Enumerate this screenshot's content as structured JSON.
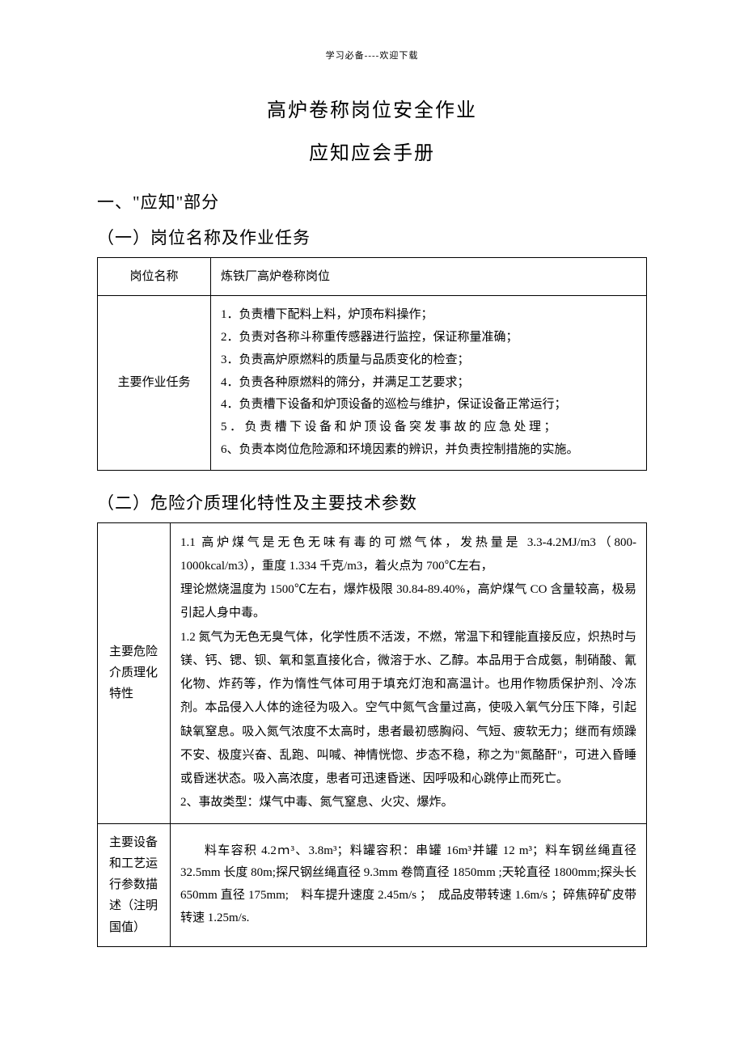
{
  "header_small": "学习必备----欢迎下载",
  "title_main": "高炉卷称岗位安全作业",
  "title_sub": "应知应会手册",
  "section_1": "一、\"应知\"部分",
  "subsection_1_1": "（一）岗位名称及作业任务",
  "table1": {
    "row1_label": "岗位名称",
    "row1_value": "炼铁厂高炉卷称岗位",
    "row2_label": "主要作业任务",
    "tasks": {
      "t1": "1．负责槽下配料上料，炉顶布料操作；",
      "t2": "2．负责对各称斗称重传感器进行监控，保证称量准确；",
      "t3": "3．负责高炉原燃料的质量与品质变化的检查；",
      "t4": "4．负责各种原燃料的筛分，并满足工艺要求；",
      "t5": "4．负责槽下设备和炉顶设备的巡检与维护，保证设备正常运行；",
      "t6": "5．负责槽下设备和炉顶设备突发事故的应急处理；",
      "t7": "6、负责本岗位危险源和环境因素的辨识，并负责控制措施的实施。"
    }
  },
  "subsection_1_2": "（二）危险介质理化特性及主要技术参数",
  "table2": {
    "row1_label": "主要危险介质理化特性",
    "char_p1": "1.1 高炉煤气是无色无味有毒的可燃气体，发热量是 3.3-4.2MJ/m3（800-1000kcal/m3），重度 1.334 千克/m3，着火点为 700℃左右，",
    "char_p2": "理论燃烧温度为 1500℃左右，爆炸极限 30.84-89.40%，高炉煤气 CO 含量较高，极易引起人身中毒。",
    "char_p3": "1.2 氮气为无色无臭气体，化学性质不活泼，不燃，常温下和锂能直接反应，炽热时与镁、钙、锶、钡、氧和氢直接化合，微溶于水、乙醇。本品用于合成氨，制硝酸、氰化物、炸药等，作为惰性气体可用于填充灯泡和高温计。也用作物质保护剂、冷冻剂。本品侵入人体的途径为吸入。空气中氮气含量过高，使吸入氧气分压下降，引起缺氧窒息。吸入氮气浓度不太高时，患者最初感胸闷、气短、疲软无力；继而有烦躁不安、极度兴奋、乱跑、叫喊、神情恍惚、步态不稳，称之为\"氮酪酐\"，可进入昏睡或昏迷状态。吸入高浓度，患者可迅速昏迷、因呼吸和心跳停止而死亡。",
    "char_p4": "2、事故类型：煤气中毒、氮气窒息、火灾、爆炸。",
    "row2_label": "主要设备和工艺运行参数描述（注明国值）",
    "params_value": "料车容积 4.2ｍ³、3.8m³；料罐容积：串罐 16m³并罐 12 m³；料车钢丝绳直径 32.5mm 长度 80m;探尺钢丝绳直径 9.3mm 卷筒直径 1850mm ;天轮直径 1800mm;探头长 650mm 直径 175mm;　料车提升速度 2.45m/s ；　成品皮带转速 1.6m/s ；碎焦碎矿皮带转速 1.25m/s."
  },
  "colors": {
    "text": "#000000",
    "background": "#ffffff",
    "border": "#000000"
  },
  "fonts": {
    "body_family": "SimSun",
    "title_size_pt": 18,
    "heading_size_pt": 16,
    "body_size_pt": 11
  }
}
